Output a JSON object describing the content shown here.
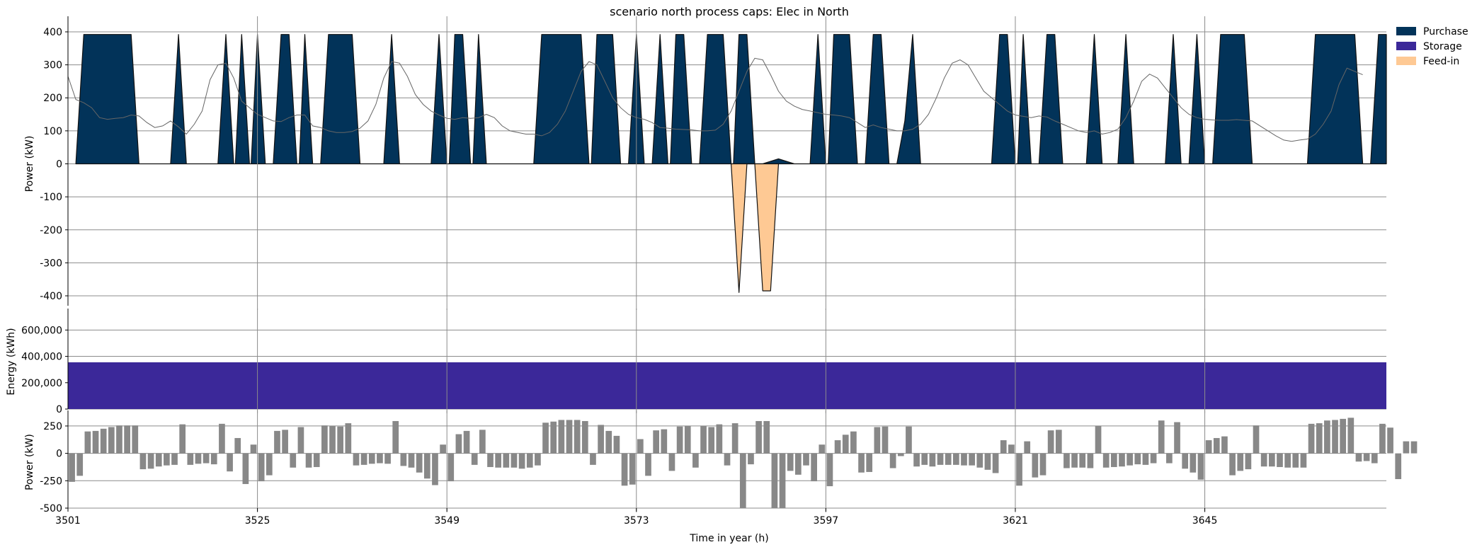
{
  "chart_data": {
    "title": "scenario north process caps: Elec in North",
    "xlabel": "Time in year (h)",
    "x_ticks": [
      3501,
      3525,
      3549,
      3573,
      3597,
      3621,
      3645
    ],
    "xlim": [
      3501,
      3668
    ],
    "grid": true,
    "legend": {
      "placement": "top-right",
      "entries": [
        {
          "name": "Purchase",
          "color": "#023359"
        },
        {
          "name": "Storage",
          "color": "#3b2899"
        },
        {
          "name": "Feed-in",
          "color": "#fec994"
        }
      ]
    },
    "panels": [
      {
        "type": "area",
        "ylabel": "Power (kW)",
        "ylim": [
          -430,
          430
        ],
        "yticks": [
          400,
          300,
          200,
          100,
          0,
          -100,
          -200,
          -300,
          -400
        ],
        "ytick_labels": [
          "400",
          "300",
          "200",
          "100",
          "0",
          "-100",
          "-200",
          "-300",
          "-400"
        ],
        "series": [
          {
            "name": "Purchase",
            "color": "#023359",
            "points": [
              [
                3502,
                0
              ],
              [
                3503,
                392
              ],
              [
                3509,
                392
              ],
              [
                3510,
                0
              ],
              [
                3514,
                0
              ],
              [
                3515,
                392
              ],
              [
                3516,
                0
              ],
              [
                3520,
                0
              ],
              [
                3521,
                392
              ],
              [
                3522,
                0
              ],
              [
                3522.2,
                0
              ],
              [
                3523,
                392
              ],
              [
                3524,
                0
              ],
              [
                3524.2,
                0
              ],
              [
                3525,
                392
              ],
              [
                3526,
                0
              ],
              [
                3527,
                0
              ],
              [
                3528,
                392
              ],
              [
                3529,
                392
              ],
              [
                3530,
                0
              ],
              [
                3530.3,
                0
              ],
              [
                3531,
                392
              ],
              [
                3532,
                0
              ],
              [
                3533,
                0
              ],
              [
                3534,
                392
              ],
              [
                3537,
                392
              ],
              [
                3538,
                0
              ],
              [
                3541,
                0
              ],
              [
                3542,
                392
              ],
              [
                3543,
                0
              ],
              [
                3547,
                0
              ],
              [
                3548,
                392
              ],
              [
                3549,
                0
              ],
              [
                3549.3,
                0
              ],
              [
                3550,
                392
              ],
              [
                3551,
                392
              ],
              [
                3552,
                0
              ],
              [
                3552.3,
                0
              ],
              [
                3553,
                392
              ],
              [
                3554,
                0
              ],
              [
                3560,
                0
              ],
              [
                3561,
                392
              ],
              [
                3566,
                392
              ],
              [
                3567,
                0
              ],
              [
                3567.3,
                0
              ],
              [
                3568,
                392
              ],
              [
                3570,
                392
              ],
              [
                3571,
                0
              ],
              [
                3572,
                0
              ],
              [
                3573,
                392
              ],
              [
                3574,
                0
              ],
              [
                3575,
                0
              ],
              [
                3576,
                392
              ],
              [
                3577,
                0
              ],
              [
                3577.3,
                0
              ],
              [
                3578,
                392
              ],
              [
                3579,
                392
              ],
              [
                3580,
                0
              ],
              [
                3581,
                0
              ],
              [
                3582,
                392
              ],
              [
                3584,
                392
              ],
              [
                3585,
                0
              ],
              [
                3585.3,
                0
              ],
              [
                3586,
                392
              ],
              [
                3587,
                392
              ],
              [
                3588,
                0
              ],
              [
                3589,
                0
              ],
              [
                3591,
                15
              ],
              [
                3593,
                0
              ],
              [
                3595,
                0
              ],
              [
                3596,
                392
              ],
              [
                3597,
                0
              ],
              [
                3597.3,
                0
              ],
              [
                3598,
                392
              ],
              [
                3600,
                392
              ],
              [
                3601,
                0
              ],
              [
                3602,
                0
              ],
              [
                3603,
                392
              ],
              [
                3604,
                392
              ],
              [
                3605,
                0
              ],
              [
                3606,
                0
              ],
              [
                3607,
                130
              ],
              [
                3608,
                392
              ],
              [
                3609,
                0
              ],
              [
                3618,
                0
              ],
              [
                3619,
                392
              ],
              [
                3620,
                392
              ],
              [
                3621,
                0
              ],
              [
                3621.3,
                0
              ],
              [
                3622,
                392
              ],
              [
                3623,
                0
              ],
              [
                3624,
                0
              ],
              [
                3625,
                392
              ],
              [
                3626,
                392
              ],
              [
                3627,
                0
              ],
              [
                3630,
                0
              ],
              [
                3631,
                392
              ],
              [
                3632,
                0
              ],
              [
                3634,
                0
              ],
              [
                3635,
                392
              ],
              [
                3636,
                0
              ],
              [
                3640,
                0
              ],
              [
                3641,
                392
              ],
              [
                3642,
                0
              ],
              [
                3643,
                0
              ],
              [
                3644,
                392
              ],
              [
                3645,
                0
              ],
              [
                3646,
                0
              ],
              [
                3647,
                392
              ],
              [
                3648,
                392
              ],
              [
                3650,
                392
              ],
              [
                3651,
                0
              ],
              [
                3658,
                0
              ],
              [
                3659,
                392
              ],
              [
                3664,
                392
              ],
              [
                3665,
                0
              ],
              [
                3666,
                0
              ],
              [
                3667,
                392
              ],
              [
                3668,
                392
              ],
              [
                3668,
                0
              ]
            ]
          },
          {
            "name": "Feed-in",
            "color": "#fec994",
            "points": [
              [
                3585,
                0
              ],
              [
                3586,
                -390
              ],
              [
                3587,
                0
              ],
              [
                3588,
                0
              ],
              [
                3589,
                -385
              ],
              [
                3590,
                -385
              ],
              [
                3591,
                0
              ]
            ]
          },
          {
            "name": "Storage",
            "color": "#3b2899",
            "points": []
          }
        ],
        "demand_line": {
          "color": "#666666",
          "x_start": 3501,
          "values": [
            265,
            195,
            185,
            170,
            140,
            135,
            138,
            140,
            148,
            145,
            125,
            110,
            115,
            130,
            112,
            90,
            120,
            160,
            255,
            300,
            305,
            260,
            190,
            170,
            150,
            140,
            130,
            128,
            140,
            148,
            148,
            115,
            110,
            100,
            95,
            95,
            98,
            108,
            130,
            180,
            260,
            310,
            305,
            265,
            210,
            180,
            160,
            148,
            138,
            135,
            140,
            138,
            140,
            150,
            140,
            115,
            100,
            95,
            90,
            90,
            85,
            95,
            120,
            160,
            220,
            280,
            310,
            300,
            250,
            200,
            170,
            150,
            140,
            135,
            125,
            110,
            108,
            105,
            104,
            103,
            100,
            100,
            102,
            120,
            160,
            220,
            280,
            320,
            315,
            270,
            220,
            190,
            175,
            165,
            160,
            155,
            150,
            148,
            145,
            140,
            125,
            110,
            118,
            110,
            105,
            100,
            100,
            105,
            120,
            150,
            200,
            260,
            305,
            315,
            300,
            260,
            220,
            200,
            180,
            160,
            148,
            144,
            140,
            145,
            142,
            130,
            120,
            110,
            100,
            95,
            100,
            90,
            95,
            105,
            140,
            190,
            250,
            272,
            260,
            230,
            200,
            170,
            150,
            140,
            135,
            133,
            132,
            132,
            134,
            132,
            130,
            115,
            100,
            85,
            72,
            68,
            72,
            75,
            90,
            120,
            160,
            240,
            290,
            280,
            270
          ]
        }
      },
      {
        "type": "area",
        "ylabel": "Energy (kWh)",
        "ylim": [
          0,
          720000
        ],
        "yticks": [
          0,
          200000,
          400000,
          600000
        ],
        "ytick_labels": [
          "0",
          "200,000",
          "400,000",
          "600,000"
        ],
        "series": [
          {
            "name": "Storage",
            "color": "#3b2899",
            "constant_value": 355000
          }
        ]
      },
      {
        "type": "bar",
        "ylabel": "Power (kW)",
        "ylim": [
          -500,
          340
        ],
        "yticks": [
          250,
          0,
          -250,
          -500
        ],
        "ytick_labels": [
          "250",
          "0",
          "-250",
          "-500"
        ],
        "color": "#888888",
        "x_start": 3501,
        "values": [
          -260,
          -205,
          200,
          205,
          225,
          240,
          255,
          255,
          255,
          -145,
          -140,
          -120,
          -110,
          -105,
          265,
          -105,
          -95,
          -90,
          -100,
          270,
          -165,
          140,
          -280,
          80,
          -255,
          -200,
          205,
          215,
          -130,
          240,
          -130,
          -125,
          255,
          250,
          245,
          275,
          -110,
          -105,
          -95,
          -90,
          -95,
          295,
          -115,
          -130,
          -175,
          -230,
          -290,
          80,
          -255,
          175,
          205,
          -105,
          215,
          -125,
          -130,
          -130,
          -130,
          -140,
          -130,
          -110,
          280,
          290,
          305,
          305,
          305,
          295,
          -105,
          260,
          205,
          160,
          -295,
          -285,
          130,
          -205,
          210,
          220,
          -160,
          245,
          250,
          -130,
          250,
          240,
          265,
          -110,
          275,
          -500,
          -100,
          295,
          295,
          -500,
          -500,
          -160,
          -195,
          -110,
          -255,
          80,
          -300,
          120,
          170,
          200,
          -175,
          -170,
          240,
          245,
          -135,
          -25,
          245,
          -120,
          -105,
          -120,
          -105,
          -105,
          -105,
          -110,
          -110,
          -130,
          -150,
          -180,
          120,
          80,
          -295,
          110,
          -220,
          -200,
          210,
          215,
          -135,
          -130,
          -130,
          -135,
          250,
          -130,
          -125,
          -120,
          -110,
          -100,
          -105,
          -90,
          300,
          -90,
          285,
          -140,
          -175,
          -240,
          120,
          140,
          155,
          -200,
          -160,
          -145,
          255,
          -120,
          -120,
          -125,
          -130,
          -130,
          -130,
          270,
          275,
          300,
          305,
          315,
          325,
          -75,
          -70,
          -90,
          270,
          235,
          -235,
          110,
          110
        ]
      }
    ]
  }
}
